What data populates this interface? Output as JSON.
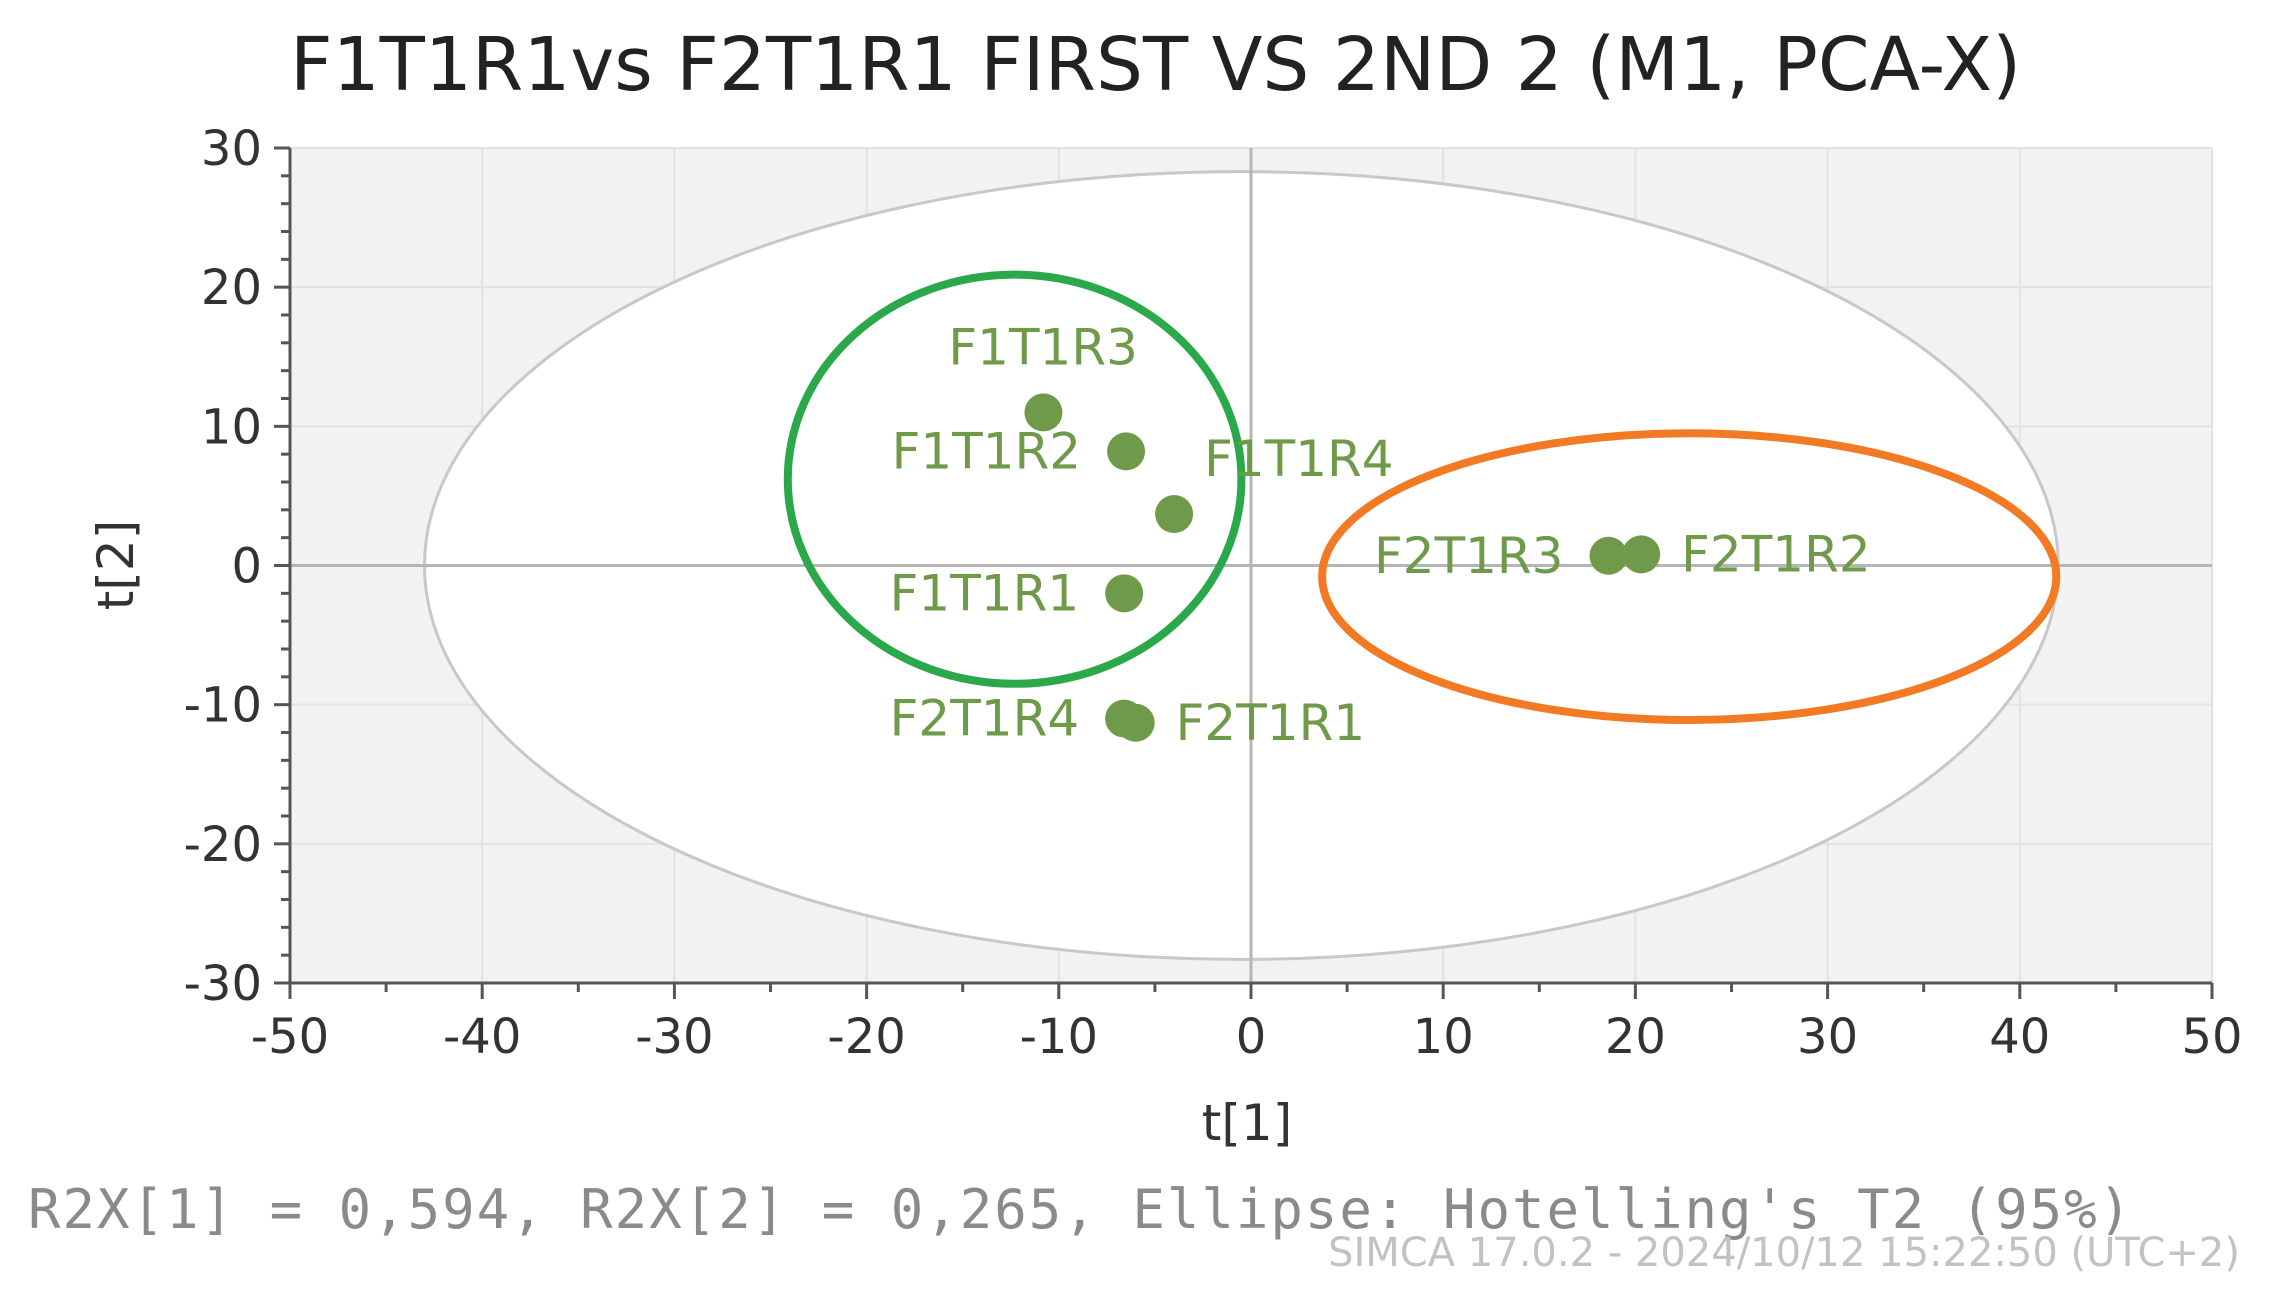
{
  "chart_data": {
    "type": "scatter",
    "title": "F1T1R1vs F2T1R1 FIRST VS 2ND 2 (M1, PCA-X)",
    "xlabel": "t[1]",
    "ylabel": "t[2]",
    "xlim": [
      -50,
      50
    ],
    "ylim": [
      -30,
      30
    ],
    "xticks": [
      "-50",
      "-40",
      "-30",
      "-20",
      "-10",
      "0",
      "10",
      "20",
      "30",
      "40",
      "50"
    ],
    "yticks": [
      "30",
      "20",
      "10",
      "0",
      "-10",
      "-20",
      "-30"
    ],
    "grid": true,
    "points": [
      {
        "label": "F1T1R3",
        "x": -10.8,
        "y": 11.0
      },
      {
        "label": "F1T1R2",
        "x": -6.5,
        "y": 8.2
      },
      {
        "label": "F1T1R4",
        "x": -4.0,
        "y": 3.7
      },
      {
        "label": "F1T1R1",
        "x": -6.6,
        "y": -2.0
      },
      {
        "label": "F2T1R4",
        "x": -6.6,
        "y": -11.0
      },
      {
        "label": "F2T1R1",
        "x": -6.0,
        "y": -11.3
      },
      {
        "label": "F2T1R3",
        "x": 18.6,
        "y": 0.7
      },
      {
        "label": "F2T1R2",
        "x": 20.3,
        "y": 0.8
      }
    ],
    "hotelling_ellipse": {
      "cx": -0.5,
      "cy": 0,
      "rx": 42.5,
      "ry": 28.3
    },
    "group_circles": [
      {
        "color": "#2aa84a",
        "cx": -12.3,
        "cy": 6.2,
        "rx": 11.8,
        "ry": 14.7
      },
      {
        "color": "#f27a24",
        "cx": 22.8,
        "cy": -0.8,
        "rx": 19.1,
        "ry": 10.3
      }
    ],
    "footer": "R2X[1] = 0,594, R2X[2] = 0,265, Ellipse: Hotelling's T2 (95%)",
    "software_stamp": "SIMCA 17.0.2 - 2024/10/12 15:22:50 (UTC+2)"
  },
  "colors": {
    "point": "#6e9a4a",
    "plot_background": "#f2f2f2",
    "ellipse_fill": "#ffffff",
    "ellipse_stroke": "#c8c8c8",
    "zero_line": "#b5b5b5"
  }
}
